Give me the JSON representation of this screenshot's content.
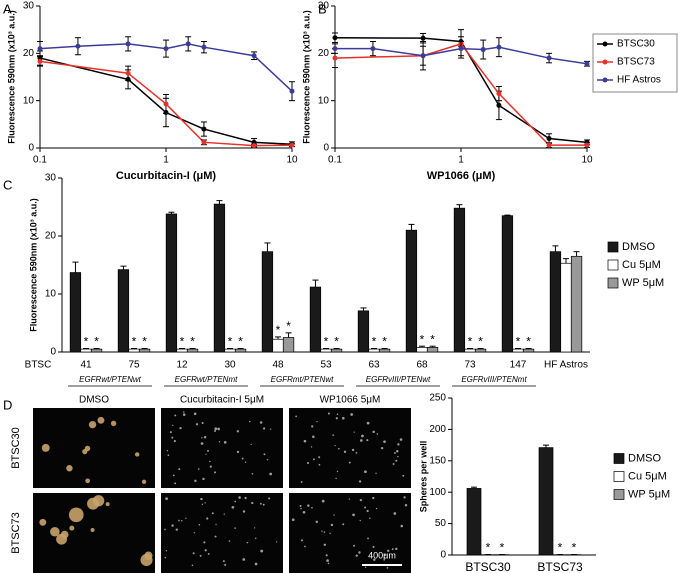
{
  "chart_data": [
    {
      "panel": "A",
      "type": "line",
      "xscale": "log",
      "xlabel": "Cucurbitacin-I (μM)",
      "ylabel": "Fluorescence 590nm (x10³ a.u.)",
      "xlim": [
        0.1,
        10
      ],
      "xticks": [
        0.1,
        1,
        10
      ],
      "ylim": [
        0,
        30
      ],
      "yticks": [
        0,
        10,
        20,
        30
      ],
      "series": [
        {
          "color": "#000000",
          "x": [
            0.1,
            0.5,
            1,
            2,
            5,
            10
          ],
          "values": [
            19,
            14.5,
            7.5,
            4,
            1.2,
            0.8
          ],
          "errors": [
            1.5,
            2,
            3,
            1.5,
            0.8,
            0.5
          ]
        },
        {
          "color": "#e8312a",
          "x": [
            0.1,
            0.5,
            1,
            2,
            5,
            10
          ],
          "values": [
            18.3,
            15.8,
            9.3,
            1.2,
            0.5,
            0.6
          ],
          "errors": [
            1,
            1.5,
            2,
            0.5,
            0.3,
            0.3
          ]
        },
        {
          "color": "#3b3b9c",
          "x": [
            0.1,
            0.2,
            0.5,
            1,
            1.5,
            2,
            5,
            10
          ],
          "values": [
            21,
            21.5,
            22,
            21,
            22,
            21.3,
            19.5,
            12
          ],
          "errors": [
            1.5,
            1.8,
            1.5,
            1.8,
            1.5,
            1.2,
            0.8,
            2
          ]
        }
      ]
    },
    {
      "panel": "B",
      "type": "line",
      "xscale": "log",
      "xlabel": "WP1066 (μM)",
      "ylabel": "Fluorescence 590nm (x10³ a.u.)",
      "xlim": [
        0.1,
        10
      ],
      "xticks": [
        0.1,
        1,
        10
      ],
      "ylim": [
        0,
        30
      ],
      "yticks": [
        0,
        10,
        20,
        30
      ],
      "legend": "right",
      "series": [
        {
          "name": "BTSC30",
          "color": "#000000",
          "x": [
            0.1,
            0.5,
            1,
            2,
            5,
            10
          ],
          "values": [
            23.3,
            23.2,
            22.5,
            9,
            2,
            1.2
          ],
          "errors": [
            1,
            1,
            1,
            3,
            1,
            0.5
          ]
        },
        {
          "name": "BTSC73",
          "color": "#e8312a",
          "x": [
            0.1,
            0.5,
            1,
            2,
            5,
            10
          ],
          "values": [
            19,
            19.5,
            22,
            11.5,
            0.6,
            0.6
          ],
          "errors": [
            2,
            3,
            3,
            1.5,
            0.5,
            0.5
          ]
        },
        {
          "name": "HF Astros",
          "color": "#3b3b9c",
          "x": [
            0.1,
            0.2,
            0.5,
            1,
            1.5,
            2,
            5,
            10
          ],
          "values": [
            21,
            21,
            19.5,
            21,
            20.8,
            21.3,
            19,
            17.8
          ],
          "errors": [
            1,
            1.5,
            2,
            1.5,
            2,
            2,
            1,
            0.5
          ]
        }
      ]
    },
    {
      "panel": "C",
      "type": "bar",
      "ylabel": "Fluorescence 590nm (x10³ a.u.)",
      "category_axis_label": "BTSC",
      "categories": [
        "41",
        "75",
        "12",
        "30",
        "48",
        "53",
        "63",
        "68",
        "73",
        "147",
        "HF Astros"
      ],
      "groups": [
        {
          "label": "EGFRwt/PTENwt",
          "size": 2
        },
        {
          "label": "EGFRwt/PTENmt",
          "size": 2
        },
        {
          "label": "EGFRmt/PTENwt",
          "size": 2
        },
        {
          "label": "EGFRvIII/PTENwt",
          "size": 2
        },
        {
          "label": "EGFRvIII/PTENmt",
          "size": 2
        }
      ],
      "ylim": [
        0,
        30
      ],
      "yticks": [
        0,
        10,
        20,
        30
      ],
      "legend": "right",
      "series": [
        {
          "name": "DMSO",
          "color": "#1a1a1a",
          "values": [
            13.7,
            14.2,
            23.8,
            25.5,
            17.3,
            11.2,
            7.1,
            21,
            24.8,
            23.5,
            17.3
          ],
          "errors": [
            1.8,
            0.6,
            0.3,
            0.6,
            1.5,
            1.2,
            0.5,
            1,
            0.6,
            0.1,
            1
          ]
        },
        {
          "name": "Cu 5μM",
          "color": "#ffffff",
          "values": [
            0.5,
            0.5,
            0.5,
            0.5,
            2.2,
            0.5,
            0.5,
            0.8,
            0.5,
            0.5,
            15.3
          ],
          "errors": [
            0.1,
            0.1,
            0.1,
            0.1,
            0.4,
            0.1,
            0.1,
            0.2,
            0.1,
            0.1,
            0.8
          ],
          "annotations": [
            "*",
            "*",
            "*",
            "*",
            "*",
            "*",
            "*",
            "*",
            "*",
            "*",
            null
          ]
        },
        {
          "name": "WP 5μM",
          "color": "#999999",
          "values": [
            0.5,
            0.5,
            0.5,
            0.5,
            2.5,
            0.5,
            0.5,
            0.8,
            0.5,
            0.5,
            16.5
          ],
          "errors": [
            0.1,
            0.1,
            0.1,
            0.1,
            0.8,
            0.1,
            0.1,
            0.2,
            0.1,
            0.1,
            0.8
          ],
          "annotations": [
            "*",
            "*",
            "*",
            "*",
            "*",
            "*",
            "*",
            "*",
            "*",
            "*",
            null
          ]
        }
      ]
    },
    {
      "panel": "D",
      "type": "bar",
      "ylabel": "Spheres per well",
      "categories": [
        "BTSC30",
        "BTSC73"
      ],
      "ylim": [
        0,
        250
      ],
      "yticks": [
        0,
        50,
        100,
        150,
        200,
        250
      ],
      "legend": "right",
      "series": [
        {
          "name": "DMSO",
          "color": "#1a1a1a",
          "values": [
            106,
            171
          ],
          "errors": [
            2,
            4
          ]
        },
        {
          "name": "Cu 5μM",
          "color": "#ffffff",
          "values": [
            0.5,
            0.5
          ],
          "errors": [
            0.2,
            0.2
          ],
          "annotations": [
            "*",
            "*"
          ]
        },
        {
          "name": "WP 5μM",
          "color": "#999999",
          "values": [
            0.5,
            0.5
          ],
          "errors": [
            0.2,
            0.2
          ],
          "annotations": [
            "*",
            "*"
          ]
        }
      ]
    }
  ],
  "micrographs": {
    "columns": [
      "DMSO",
      "Cucurbitacin-I 5μM",
      "WP1066 5μM"
    ],
    "rows": [
      "BTSC30",
      "BTSC73"
    ],
    "scale_bar": "400μm"
  }
}
